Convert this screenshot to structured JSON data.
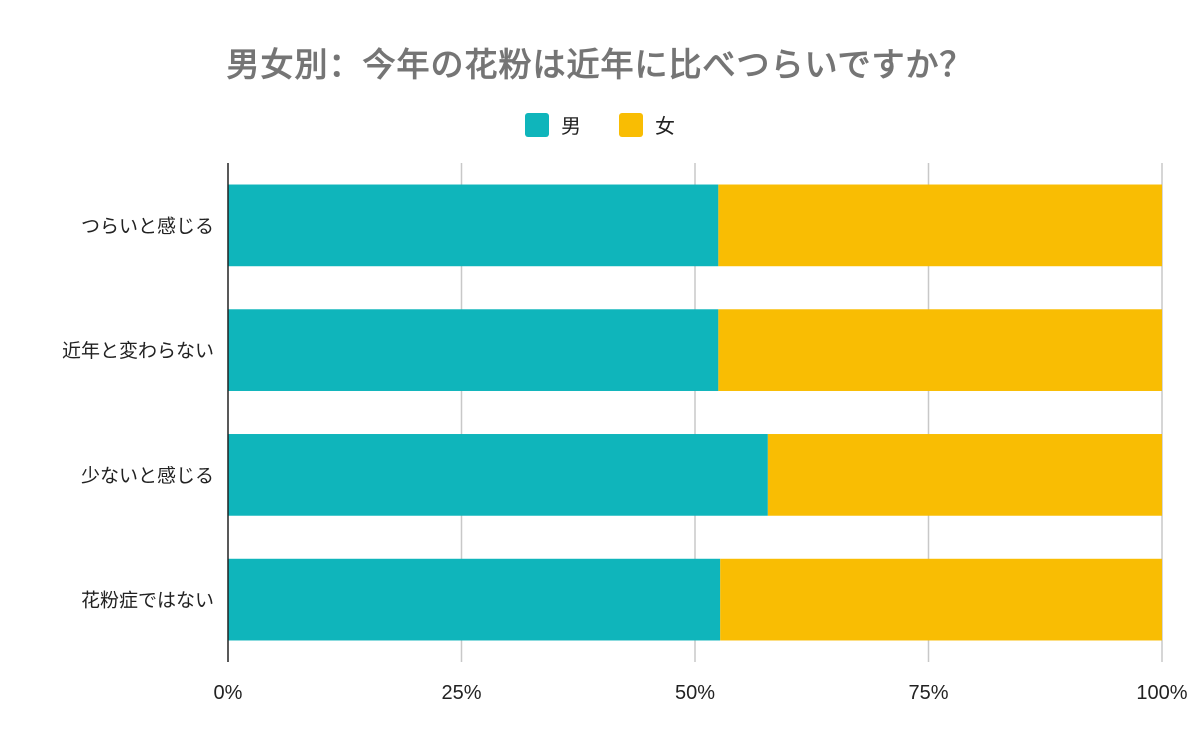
{
  "chart_data": {
    "type": "bar",
    "orientation": "horizontal",
    "stacked": "percent",
    "title": "男女別：今年の花粉は近年に比べつらいですか？",
    "categories": [
      "つらいと感じる",
      "近年と変わらない",
      "少ないと感じる",
      "花粉症ではない"
    ],
    "series": [
      {
        "name": "男",
        "color": "#0fb5bb",
        "values": [
          52.5,
          52.5,
          57.8,
          52.7
        ]
      },
      {
        "name": "女",
        "color": "#f9bd03",
        "values": [
          47.5,
          47.5,
          42.2,
          47.3
        ]
      }
    ],
    "xlim": [
      0,
      100
    ],
    "x_ticks": [
      "0%",
      "25%",
      "50%",
      "75%",
      "100%"
    ],
    "grid": true,
    "legend_position": "top-center"
  }
}
